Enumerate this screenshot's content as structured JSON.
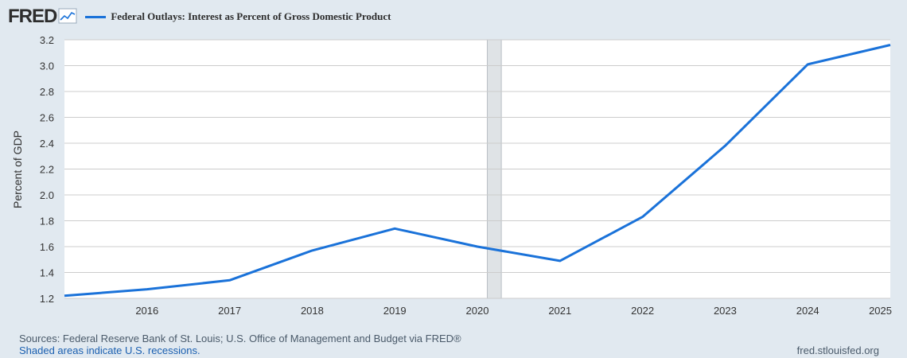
{
  "header": {
    "logo_text": "FRED",
    "logo_icon": "line-chart-icon",
    "legend_label": "Federal Outlays: Interest as Percent of Gross Domestic Product"
  },
  "colors": {
    "series": "#1a72d9",
    "background": "#e1e9f0",
    "plot": "#ffffff",
    "grid": "#cccccc",
    "recession": "#dfe3e6"
  },
  "chart_data": {
    "type": "line",
    "title": "",
    "xlabel": "",
    "ylabel": "Percent of GDP",
    "x": [
      2015,
      2016,
      2017,
      2018,
      2019,
      2020,
      2021,
      2022,
      2023,
      2024,
      2025
    ],
    "x_ticks": [
      "2016",
      "2017",
      "2018",
      "2019",
      "2020",
      "2021",
      "2022",
      "2023",
      "2024",
      "2025"
    ],
    "y_ticks": [
      "1.2",
      "1.4",
      "1.6",
      "1.8",
      "2.0",
      "2.2",
      "2.4",
      "2.6",
      "2.8",
      "3.0",
      "3.2"
    ],
    "xlim": [
      2015,
      2025
    ],
    "ylim": [
      1.2,
      3.2
    ],
    "series": [
      {
        "name": "Federal Outlays: Interest as Percent of Gross Domestic Product",
        "values": [
          1.22,
          1.27,
          1.34,
          1.57,
          1.74,
          1.6,
          1.49,
          1.83,
          2.38,
          3.01,
          3.16
        ]
      }
    ],
    "recessions": [
      [
        2020.12,
        2020.29
      ]
    ],
    "grid": true,
    "legend": "top-left"
  },
  "footer": {
    "sources": "Sources: Federal Reserve Bank of St. Louis; U.S. Office of Management and Budget via FRED®",
    "shaded": "Shaded areas indicate U.S. recessions.",
    "url": "fred.stlouisfed.org"
  }
}
